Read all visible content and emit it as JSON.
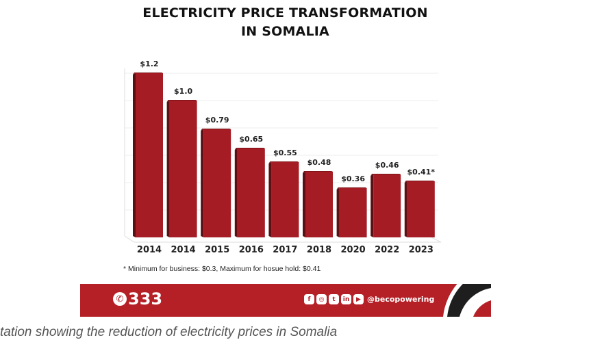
{
  "chart_data": {
    "type": "bar",
    "title": "ELECTRICITY PRICE TRANSFORMATION",
    "title_line2": "IN SOMALIA",
    "categories": [
      "2014",
      "2014",
      "2015",
      "2016",
      "2017",
      "2018",
      "2020",
      "2022",
      "2023"
    ],
    "values": [
      1.2,
      1.0,
      0.79,
      0.65,
      0.55,
      0.48,
      0.36,
      0.46,
      0.41
    ],
    "data_labels": [
      "$1.2",
      "$1.0",
      "$0.79",
      "$0.65",
      "$0.55",
      "$0.48",
      "$0.36",
      "$0.46",
      "$0.41*"
    ],
    "xlabel": "",
    "ylabel": "",
    "ylim": [
      0,
      1.2
    ],
    "grid": true,
    "bar_color": "#a51c24"
  },
  "footnote": "*  Minimum for business: $0.3, Maximum for hosue hold: $0.41",
  "footer": {
    "phone": "333",
    "handle": "@becopowering",
    "social_icons": [
      "facebook-icon",
      "instagram-icon",
      "twitter-icon",
      "linkedin-icon",
      "youtube-icon"
    ],
    "brand_color": "#b51f26"
  },
  "caption": "tation showing the reduction of electricity prices in Somalia"
}
